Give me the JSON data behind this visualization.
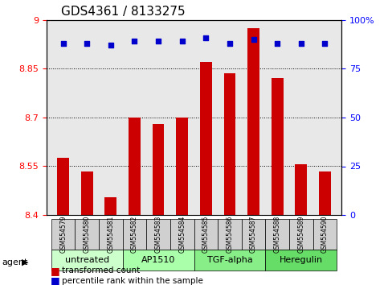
{
  "title": "GDS4361 / 8133275",
  "samples": [
    "GSM554579",
    "GSM554580",
    "GSM554581",
    "GSM554582",
    "GSM554583",
    "GSM554584",
    "GSM554585",
    "GSM554586",
    "GSM554587",
    "GSM554588",
    "GSM554589",
    "GSM554590"
  ],
  "bar_values": [
    8.575,
    8.535,
    8.455,
    8.7,
    8.68,
    8.7,
    8.87,
    8.835,
    8.975,
    8.82,
    8.555,
    8.535
  ],
  "percentile_values": [
    88,
    88,
    87,
    89,
    89,
    89,
    91,
    88,
    90,
    88,
    88,
    88
  ],
  "bar_color": "#cc0000",
  "dot_color": "#0000cc",
  "ylim_left": [
    8.4,
    9.0
  ],
  "ylim_right": [
    0,
    100
  ],
  "yticks_left": [
    8.4,
    8.55,
    8.7,
    8.85,
    9.0
  ],
  "yticks_right": [
    0,
    25,
    50,
    75,
    100
  ],
  "ytick_labels_left": [
    "8.4",
    "8.55",
    "8.7",
    "8.85",
    "9"
  ],
  "ytick_labels_right": [
    "0",
    "25",
    "50",
    "75",
    "100%"
  ],
  "grid_lines": [
    8.55,
    8.7,
    8.85
  ],
  "agent_groups": [
    {
      "label": "untreated",
      "start": 0,
      "end": 3,
      "color": "#ccffcc"
    },
    {
      "label": "AP1510",
      "start": 3,
      "end": 6,
      "color": "#aaffaa"
    },
    {
      "label": "TGF-alpha",
      "start": 6,
      "end": 9,
      "color": "#88ee88"
    },
    {
      "label": "Heregulin",
      "start": 9,
      "end": 12,
      "color": "#66dd66"
    }
  ],
  "agent_label": "agent",
  "legend_bar_label": "transformed count",
  "legend_dot_label": "percentile rank within the sample",
  "bar_width": 0.5,
  "plot_bg": "#e8e8e8",
  "fig_bg": "#ffffff"
}
